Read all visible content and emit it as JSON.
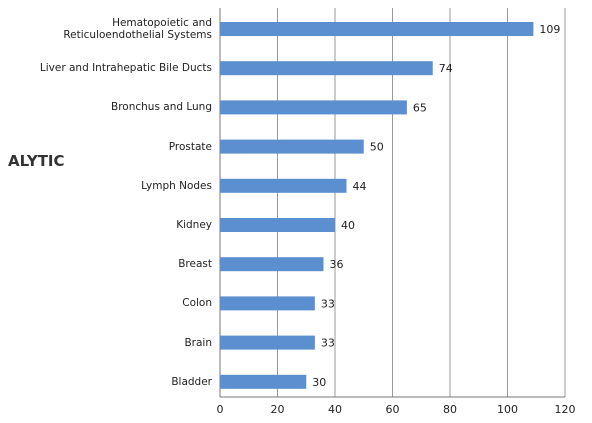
{
  "chart_data": {
    "type": "barh",
    "annotation": "ALYTIC",
    "categories": [
      "Hematopoietic and\nReticuloendothelial Systems",
      "Liver and Intrahepatic Bile Ducts",
      "Bronchus and Lung",
      "Prostate",
      "Lymph Nodes",
      "Kidney",
      "Breast",
      "Colon",
      "Brain",
      "Bladder"
    ],
    "values": [
      109,
      74,
      65,
      50,
      44,
      40,
      36,
      33,
      33,
      30
    ],
    "color": "#5b8fd0",
    "xlim": [
      0,
      120
    ],
    "xticks": [
      0,
      20,
      40,
      60,
      80,
      100,
      120
    ],
    "grid": true
  }
}
